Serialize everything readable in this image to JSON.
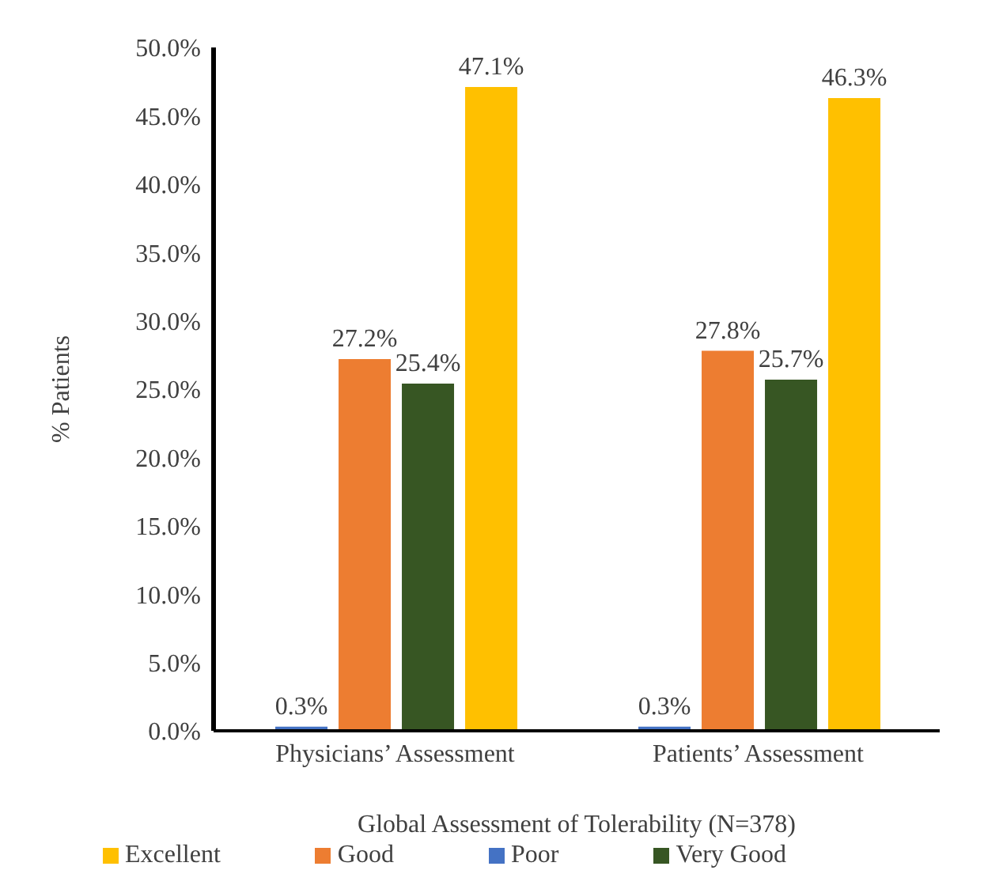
{
  "chart_data": {
    "type": "bar",
    "xlabel": "Global Assessment of Tolerability (N=378)",
    "ylabel": "% Patients",
    "categories": [
      "Physicians’ Assessment",
      "Patients’ Assessment"
    ],
    "series": [
      {
        "name": "Poor",
        "color": "#4472c4",
        "values": [
          0.3,
          0.3
        ],
        "value_labels": [
          "0.3%",
          "0.3%"
        ]
      },
      {
        "name": "Good",
        "color": "#ed7d31",
        "values": [
          27.2,
          27.8
        ],
        "value_labels": [
          "27.2%",
          "27.8%"
        ]
      },
      {
        "name": "Very Good",
        "color": "#375623",
        "values": [
          25.4,
          25.7
        ],
        "value_labels": [
          "25.4%",
          "25.7%"
        ]
      },
      {
        "name": "Excellent",
        "color": "#ffc000",
        "values": [
          47.1,
          46.3
        ],
        "value_labels": [
          "47.1%",
          "46.3%"
        ]
      }
    ],
    "ylim": [
      0,
      50
    ],
    "yticks": [
      {
        "value": 0,
        "label": "0.0%"
      },
      {
        "value": 5,
        "label": "5.0%"
      },
      {
        "value": 10,
        "label": "10.0%"
      },
      {
        "value": 15,
        "label": "15.0%"
      },
      {
        "value": 20,
        "label": "20.0%"
      },
      {
        "value": 25,
        "label": "25.0%"
      },
      {
        "value": 30,
        "label": "30.0%"
      },
      {
        "value": 35,
        "label": "35.0%"
      },
      {
        "value": 40,
        "label": "40.0%"
      },
      {
        "value": 45,
        "label": "45.0%"
      },
      {
        "value": 50,
        "label": "50.0%"
      }
    ],
    "grid": false,
    "legend": "bottom"
  }
}
